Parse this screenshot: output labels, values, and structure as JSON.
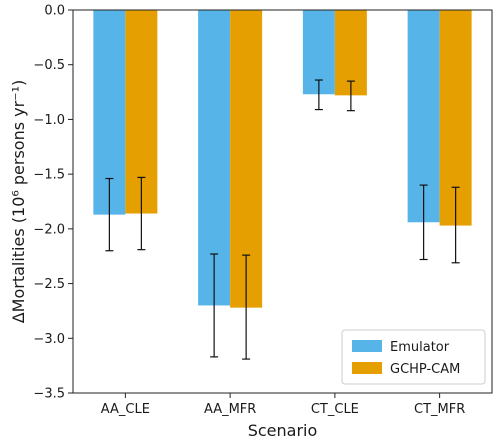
{
  "chart_data": {
    "type": "bar",
    "xlabel": "Scenario",
    "ylabel": "ΔMortalities (10⁶ persons yr⁻¹)",
    "ylim": [
      -3.5,
      0.0
    ],
    "yticks": [
      0.0,
      -0.5,
      -1.0,
      -1.5,
      -2.0,
      -2.5,
      -3.0,
      -3.5
    ],
    "ytick_labels": [
      "0.0",
      "−0.5",
      "−1.0",
      "−1.5",
      "−2.0",
      "−2.5",
      "−3.0",
      "−3.5"
    ],
    "categories": [
      "AA_CLE",
      "AA_MFR",
      "CT_CLE",
      "CT_MFR"
    ],
    "series": [
      {
        "name": "Emulator",
        "color": "#56B4E9",
        "values": [
          -1.87,
          -2.7,
          -0.77,
          -1.94
        ],
        "err_low": [
          -2.2,
          -3.17,
          -0.91,
          -2.28
        ],
        "err_high": [
          -1.54,
          -2.23,
          -0.64,
          -1.6
        ]
      },
      {
        "name": "GCHP-CAM",
        "color": "#E69F00",
        "values": [
          -1.86,
          -2.72,
          -0.78,
          -1.97
        ],
        "err_low": [
          -2.19,
          -3.19,
          -0.92,
          -2.31
        ],
        "err_high": [
          -1.53,
          -2.24,
          -0.65,
          -1.62
        ]
      }
    ],
    "legend": {
      "position": "lower-right",
      "entries": [
        "Emulator",
        "GCHP-CAM"
      ]
    },
    "grid": false
  }
}
